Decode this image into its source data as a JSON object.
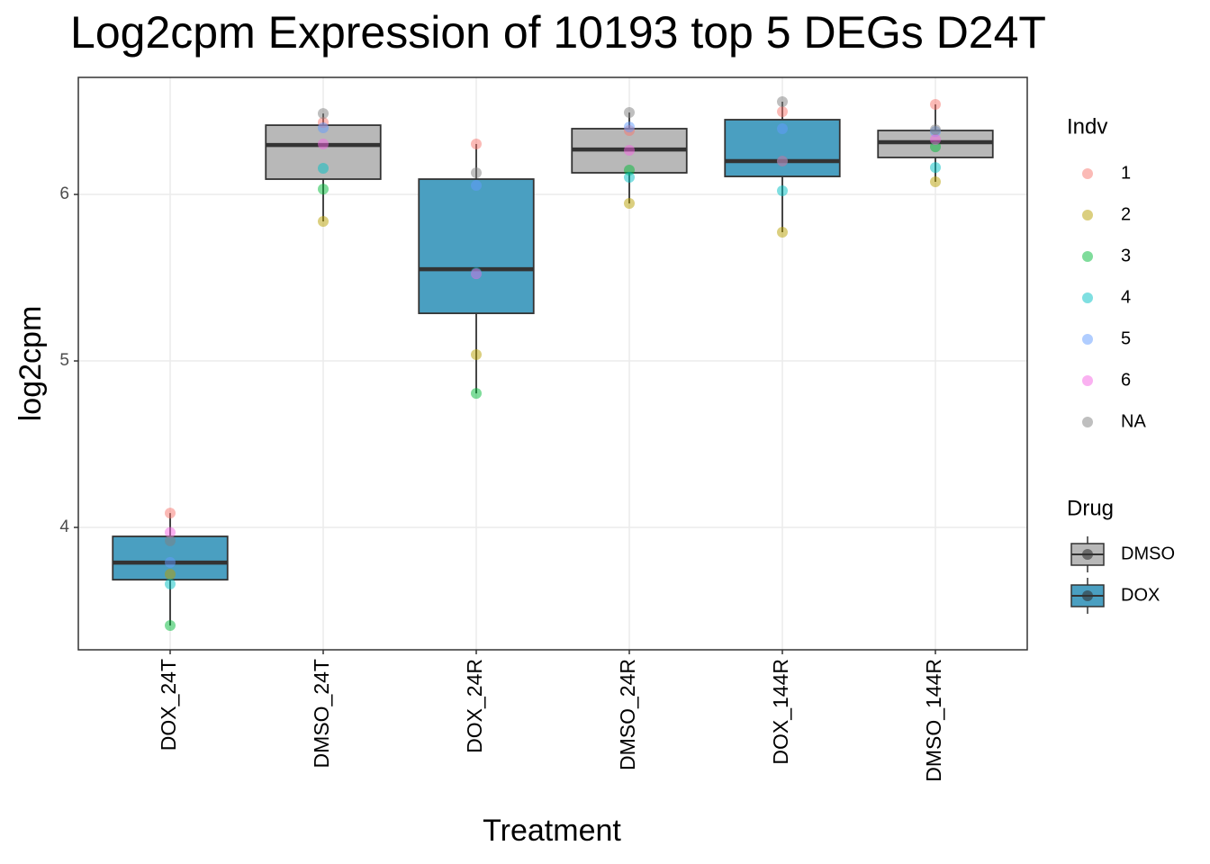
{
  "chart_data": {
    "type": "box",
    "title": "Log2cpm Expression of 10193 top 5 DEGs D24T",
    "x_label": "Treatment",
    "y_label": "log2cpm",
    "categories": [
      "DOX_24T",
      "DMSO_24T",
      "DOX_24R",
      "DMSO_24R",
      "DOX_144R",
      "DMSO_144R"
    ],
    "ylim": [
      3.265,
      6.703
    ],
    "yticks": [
      4,
      5,
      6
    ],
    "grid": true,
    "boxes": [
      {
        "group": "DOX",
        "low": 3.411,
        "q1": 3.686,
        "median": 3.789,
        "q3": 3.946,
        "high": 4.086
      },
      {
        "group": "DMSO",
        "low": 5.838,
        "q1": 6.092,
        "median": 6.297,
        "q3": 6.416,
        "high": 6.486
      },
      {
        "group": "DOX",
        "low": 4.805,
        "q1": 5.286,
        "median": 5.551,
        "q3": 6.092,
        "high": 6.303
      },
      {
        "group": "DMSO",
        "low": 5.946,
        "q1": 6.13,
        "median": 6.27,
        "q3": 6.395,
        "high": 6.492
      },
      {
        "group": "DOX",
        "low": 5.773,
        "q1": 6.108,
        "median": 6.2,
        "q3": 6.449,
        "high": 6.557
      },
      {
        "group": "DMSO",
        "low": 6.076,
        "q1": 6.222,
        "median": 6.314,
        "q3": 6.384,
        "high": 6.541
      }
    ],
    "points_legend_title": "Indv",
    "series": [
      {
        "name": "1",
        "color": "#F8766D",
        "values": [
          4.086,
          6.432,
          6.303,
          6.384,
          6.497,
          6.541
        ]
      },
      {
        "name": "2",
        "color": "#B79F00",
        "values": [
          3.719,
          5.838,
          5.038,
          5.946,
          5.773,
          6.076
        ]
      },
      {
        "name": "3",
        "color": "#00BA38",
        "values": [
          3.411,
          6.032,
          4.805,
          6.146,
          6.2,
          6.286
        ]
      },
      {
        "name": "4",
        "color": "#00BFC4",
        "values": [
          3.66,
          6.157,
          5.53,
          6.103,
          6.022,
          6.162
        ]
      },
      {
        "name": "5",
        "color": "#619CFF",
        "values": [
          3.79,
          6.4,
          6.054,
          6.405,
          6.395,
          6.378
        ]
      },
      {
        "name": "6",
        "color": "#F564E3",
        "values": [
          3.97,
          6.303,
          5.524,
          6.265,
          6.2,
          6.33
        ]
      },
      {
        "name": "NA",
        "color": "#7F7F7F",
        "values": [
          3.92,
          6.486,
          6.13,
          6.492,
          6.557,
          6.389
        ]
      }
    ],
    "groups_legend_title": "Drug",
    "groups": [
      {
        "name": "DMSO",
        "color": "#B8B8B8"
      },
      {
        "name": "DOX",
        "color": "#4A9FC1"
      }
    ]
  }
}
